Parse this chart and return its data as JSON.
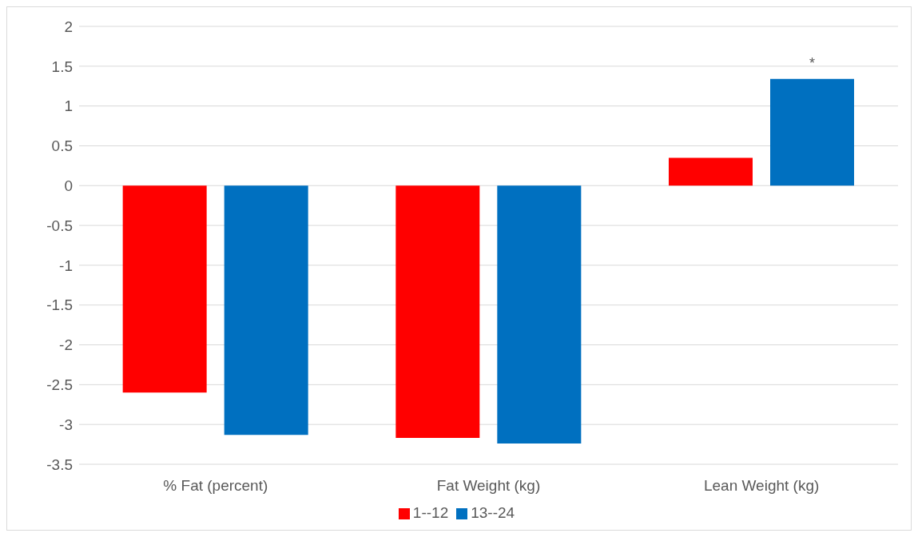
{
  "chart_data": {
    "type": "bar",
    "categories": [
      "% Fat (percent)",
      "Fat Weight (kg)",
      "Lean Weight (kg)"
    ],
    "series": [
      {
        "name": "1--12",
        "color": "#ff0000",
        "values": [
          -2.6,
          -3.17,
          0.35
        ]
      },
      {
        "name": "13--24",
        "color": "#0070c0",
        "values": [
          -3.13,
          -3.24,
          1.34
        ]
      }
    ],
    "ylim": [
      -3.5,
      2
    ],
    "yticks": [
      -3.5,
      -3,
      -2.5,
      -2,
      -1.5,
      -1,
      -0.5,
      0,
      0.5,
      1,
      1.5,
      2
    ],
    "grid": "y",
    "legend": "bottom",
    "annotations": [
      "*"
    ]
  }
}
